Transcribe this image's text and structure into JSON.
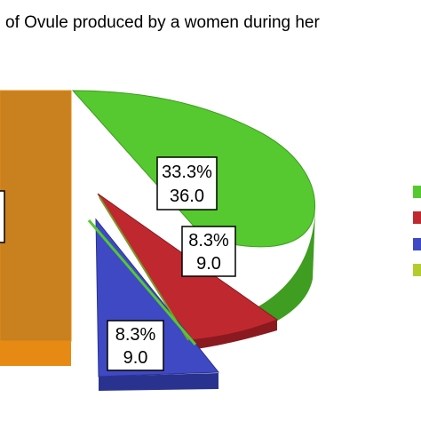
{
  "chart_data": {
    "type": "pie",
    "title": "of Ovule produced by a women during her",
    "slices": [
      {
        "percent_label": "33.3%",
        "value_label": "36.0",
        "value": 36.0,
        "color": "#55c92f",
        "side_color": "#3f9d21"
      },
      {
        "percent_label": "8.3%",
        "value_label": "9.0",
        "value": 9.0,
        "color": "#c0282f",
        "side_color": "#8a1a20"
      },
      {
        "percent_label": "8.3%",
        "value_label": "9.0",
        "value": 9.0,
        "color": "#3f49c4",
        "side_color": "#2a3290"
      },
      {
        "percent_label": "",
        "value_label": "",
        "value": 54.0,
        "color": "#c9801e",
        "side_color": "#e68a14"
      }
    ],
    "legend": {
      "placement": "right",
      "colors": [
        "#55c92f",
        "#c0282f",
        "#3f49c4",
        "#b5cc2e"
      ]
    }
  }
}
